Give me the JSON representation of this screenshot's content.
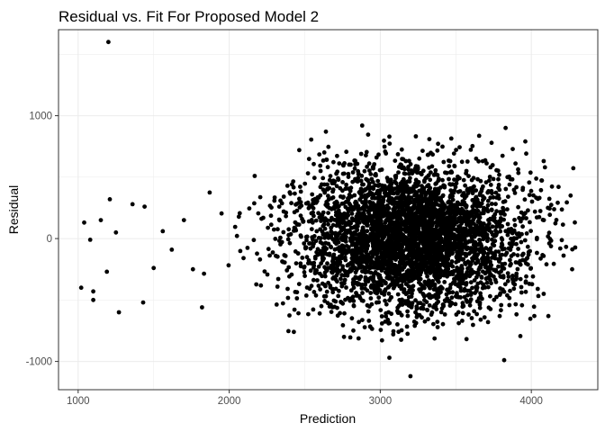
{
  "chart_data": {
    "type": "scatter",
    "title": "Residual vs. Fit For Proposed Model 2",
    "xlabel": "Prediction",
    "ylabel": "Residual",
    "xlim": [
      870,
      4440
    ],
    "ylim": [
      -1230,
      1700
    ],
    "xticks": [
      1000,
      2000,
      3000,
      4000
    ],
    "yticks": [
      -1000,
      0,
      1000
    ],
    "xtick_labels": [
      "1000",
      "2000",
      "3000",
      "4000"
    ],
    "ytick_labels": [
      "-1000",
      "0",
      "1000"
    ],
    "grid": true,
    "theme": "bw",
    "point_color": "#000000",
    "point_count_approx": 4000,
    "x_center": 3200,
    "x_spread": 380,
    "residual_spread": 300,
    "outliers": [
      {
        "x": 1200,
        "y": 1600
      },
      {
        "x": 3200,
        "y": -1120
      },
      {
        "x": 3060,
        "y": -970
      },
      {
        "x": 3820,
        "y": -990
      },
      {
        "x": 2880,
        "y": 920
      },
      {
        "x": 3830,
        "y": 900
      },
      {
        "x": 3060,
        "y": 830
      },
      {
        "x": 1020,
        "y": -400
      },
      {
        "x": 1100,
        "y": -430
      },
      {
        "x": 1100,
        "y": -500
      },
      {
        "x": 1270,
        "y": -600
      },
      {
        "x": 1430,
        "y": -520
      },
      {
        "x": 1210,
        "y": 320
      },
      {
        "x": 1360,
        "y": 280
      },
      {
        "x": 1440,
        "y": 260
      },
      {
        "x": 1820,
        "y": -560
      },
      {
        "x": 4270,
        "y": -250
      },
      {
        "x": 4260,
        "y": 350
      },
      {
        "x": 4180,
        "y": 420
      },
      {
        "x": 4020,
        "y": -630
      },
      {
        "x": 3960,
        "y": 790
      },
      {
        "x": 4090,
        "y": 580
      },
      {
        "x": 2640,
        "y": 870
      },
      {
        "x": 2760,
        "y": -800
      },
      {
        "x": 1040,
        "y": 130
      },
      {
        "x": 1080,
        "y": -10
      },
      {
        "x": 1150,
        "y": 150
      },
      {
        "x": 1190,
        "y": -270
      },
      {
        "x": 1250,
        "y": 50
      },
      {
        "x": 1500,
        "y": -240
      },
      {
        "x": 1560,
        "y": 60
      },
      {
        "x": 1620,
        "y": -90
      },
      {
        "x": 1700,
        "y": 150
      },
      {
        "x": 1760,
        "y": -250
      }
    ]
  }
}
